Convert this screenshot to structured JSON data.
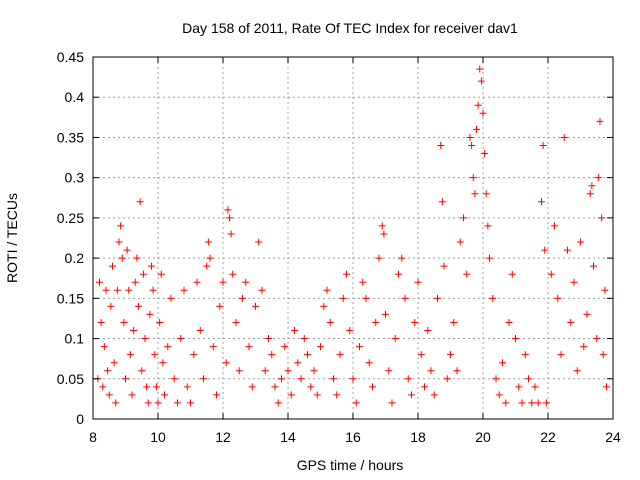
{
  "chart_data": {
    "type": "scatter",
    "title": "Day 158 of 2011, Rate Of TEC Index for receiver dav1",
    "xlabel": "GPS time / hours",
    "ylabel": "ROTI / TECUs",
    "xlim": [
      8,
      24
    ],
    "ylim": [
      0,
      0.45
    ],
    "x_ticks": [
      "8",
      "10",
      "12",
      "14",
      "16",
      "18",
      "20",
      "22",
      "24"
    ],
    "y_ticks": [
      "0",
      "0.05",
      "0.1",
      "0.15",
      "0.2",
      "0.25",
      "0.3",
      "0.35",
      "0.4",
      "0.45"
    ],
    "grid": true,
    "marker": "plus",
    "color": "#ff0000",
    "series": [
      {
        "points": [
          [
            8.15,
            0.05
          ],
          [
            8.2,
            0.17
          ],
          [
            8.25,
            0.12
          ],
          [
            8.3,
            0.04
          ],
          [
            8.35,
            0.09
          ],
          [
            8.4,
            0.16
          ],
          [
            8.45,
            0.06
          ],
          [
            8.5,
            0.03
          ],
          [
            8.55,
            0.14
          ],
          [
            8.6,
            0.19
          ],
          [
            8.65,
            0.07
          ],
          [
            8.7,
            0.02
          ],
          [
            8.75,
            0.16
          ],
          [
            8.8,
            0.22
          ],
          [
            8.85,
            0.24
          ],
          [
            8.9,
            0.2
          ],
          [
            8.95,
            0.12
          ],
          [
            9.0,
            0.05
          ],
          [
            9.05,
            0.21
          ],
          [
            9.1,
            0.16
          ],
          [
            9.15,
            0.08
          ],
          [
            9.2,
            0.03
          ],
          [
            9.25,
            0.11
          ],
          [
            9.3,
            0.17
          ],
          [
            9.35,
            0.2
          ],
          [
            9.4,
            0.14
          ],
          [
            9.45,
            0.27
          ],
          [
            9.5,
            0.06
          ],
          [
            9.55,
            0.18
          ],
          [
            9.6,
            0.1
          ],
          [
            9.65,
            0.04
          ],
          [
            9.7,
            0.02
          ],
          [
            9.75,
            0.13
          ],
          [
            9.8,
            0.19
          ],
          [
            9.85,
            0.16
          ],
          [
            9.9,
            0.08
          ],
          [
            9.95,
            0.04
          ],
          [
            10.0,
            0.02
          ],
          [
            10.05,
            0.12
          ],
          [
            10.1,
            0.18
          ],
          [
            10.15,
            0.07
          ],
          [
            10.2,
            0.03
          ],
          [
            10.3,
            0.09
          ],
          [
            10.4,
            0.15
          ],
          [
            10.5,
            0.05
          ],
          [
            10.6,
            0.02
          ],
          [
            10.7,
            0.1
          ],
          [
            10.8,
            0.16
          ],
          [
            10.9,
            0.04
          ],
          [
            11.0,
            0.02
          ],
          [
            11.1,
            0.08
          ],
          [
            11.2,
            0.17
          ],
          [
            11.3,
            0.11
          ],
          [
            11.4,
            0.05
          ],
          [
            11.5,
            0.19
          ],
          [
            11.55,
            0.22
          ],
          [
            11.6,
            0.2
          ],
          [
            11.7,
            0.09
          ],
          [
            11.8,
            0.03
          ],
          [
            11.9,
            0.14
          ],
          [
            12.0,
            0.17
          ],
          [
            12.1,
            0.07
          ],
          [
            12.15,
            0.26
          ],
          [
            12.2,
            0.25
          ],
          [
            12.25,
            0.23
          ],
          [
            12.3,
            0.18
          ],
          [
            12.4,
            0.12
          ],
          [
            12.5,
            0.06
          ],
          [
            12.6,
            0.15
          ],
          [
            12.7,
            0.17
          ],
          [
            12.8,
            0.09
          ],
          [
            12.9,
            0.04
          ],
          [
            13.0,
            0.14
          ],
          [
            13.1,
            0.22
          ],
          [
            13.2,
            0.16
          ],
          [
            13.3,
            0.06
          ],
          [
            13.4,
            0.1
          ],
          [
            13.5,
            0.08
          ],
          [
            13.6,
            0.04
          ],
          [
            13.7,
            0.02
          ],
          [
            13.8,
            0.05
          ],
          [
            13.9,
            0.09
          ],
          [
            14.0,
            0.06
          ],
          [
            14.1,
            0.03
          ],
          [
            14.2,
            0.11
          ],
          [
            14.3,
            0.07
          ],
          [
            14.4,
            0.05
          ],
          [
            14.5,
            0.1
          ],
          [
            14.6,
            0.08
          ],
          [
            14.7,
            0.04
          ],
          [
            14.8,
            0.06
          ],
          [
            14.9,
            0.03
          ],
          [
            15.0,
            0.09
          ],
          [
            15.1,
            0.14
          ],
          [
            15.2,
            0.16
          ],
          [
            15.3,
            0.12
          ],
          [
            15.4,
            0.05
          ],
          [
            15.5,
            0.03
          ],
          [
            15.6,
            0.08
          ],
          [
            15.7,
            0.15
          ],
          [
            15.8,
            0.18
          ],
          [
            15.9,
            0.11
          ],
          [
            16.0,
            0.05
          ],
          [
            16.1,
            0.02
          ],
          [
            16.2,
            0.09
          ],
          [
            16.3,
            0.17
          ],
          [
            16.4,
            0.15
          ],
          [
            16.5,
            0.07
          ],
          [
            16.6,
            0.04
          ],
          [
            16.7,
            0.12
          ],
          [
            16.8,
            0.2
          ],
          [
            16.9,
            0.24
          ],
          [
            16.95,
            0.23
          ],
          [
            17.0,
            0.13
          ],
          [
            17.1,
            0.06
          ],
          [
            17.2,
            0.02
          ],
          [
            17.3,
            0.1
          ],
          [
            17.4,
            0.18
          ],
          [
            17.5,
            0.2
          ],
          [
            17.6,
            0.15
          ],
          [
            17.7,
            0.05
          ],
          [
            17.8,
            0.03
          ],
          [
            17.9,
            0.12
          ],
          [
            18.0,
            0.17
          ],
          [
            18.1,
            0.08
          ],
          [
            18.2,
            0.04
          ],
          [
            18.3,
            0.11
          ],
          [
            18.4,
            0.06
          ],
          [
            18.5,
            0.03
          ],
          [
            18.6,
            0.15
          ],
          [
            18.7,
            0.34
          ],
          [
            18.75,
            0.27
          ],
          [
            18.8,
            0.19
          ],
          [
            18.9,
            0.05
          ],
          [
            19.0,
            0.08
          ],
          [
            19.1,
            0.12
          ],
          [
            19.2,
            0.06
          ],
          [
            19.3,
            0.22
          ],
          [
            19.4,
            0.25
          ],
          [
            19.5,
            0.18
          ],
          [
            19.6,
            0.35
          ],
          [
            19.65,
            0.34
          ],
          [
            19.7,
            0.3
          ],
          [
            19.75,
            0.28
          ],
          [
            19.8,
            0.36
          ],
          [
            19.85,
            0.39
          ],
          [
            19.9,
            0.435
          ],
          [
            19.95,
            0.42
          ],
          [
            20.0,
            0.38
          ],
          [
            20.05,
            0.33
          ],
          [
            20.1,
            0.28
          ],
          [
            20.15,
            0.24
          ],
          [
            20.2,
            0.2
          ],
          [
            20.3,
            0.15
          ],
          [
            20.4,
            0.05
          ],
          [
            20.5,
            0.03
          ],
          [
            20.6,
            0.07
          ],
          [
            20.7,
            0.02
          ],
          [
            20.8,
            0.12
          ],
          [
            20.9,
            0.18
          ],
          [
            21.0,
            0.1
          ],
          [
            21.1,
            0.04
          ],
          [
            21.2,
            0.02
          ],
          [
            21.3,
            0.08
          ],
          [
            21.4,
            0.05
          ],
          [
            21.5,
            0.02
          ],
          [
            21.6,
            0.04
          ],
          [
            21.7,
            0.02
          ],
          [
            21.8,
            0.27
          ],
          [
            21.85,
            0.34
          ],
          [
            21.9,
            0.21
          ],
          [
            21.95,
            0.02
          ],
          [
            22.1,
            0.18
          ],
          [
            22.2,
            0.24
          ],
          [
            22.3,
            0.15
          ],
          [
            22.4,
            0.08
          ],
          [
            22.5,
            0.35
          ],
          [
            22.6,
            0.21
          ],
          [
            22.7,
            0.12
          ],
          [
            22.8,
            0.17
          ],
          [
            22.9,
            0.06
          ],
          [
            23.0,
            0.22
          ],
          [
            23.1,
            0.09
          ],
          [
            23.2,
            0.13
          ],
          [
            23.3,
            0.28
          ],
          [
            23.35,
            0.29
          ],
          [
            23.4,
            0.19
          ],
          [
            23.5,
            0.1
          ],
          [
            23.55,
            0.3
          ],
          [
            23.6,
            0.37
          ],
          [
            23.65,
            0.25
          ],
          [
            23.7,
            0.08
          ],
          [
            23.75,
            0.16
          ],
          [
            23.8,
            0.04
          ]
        ]
      }
    ]
  }
}
